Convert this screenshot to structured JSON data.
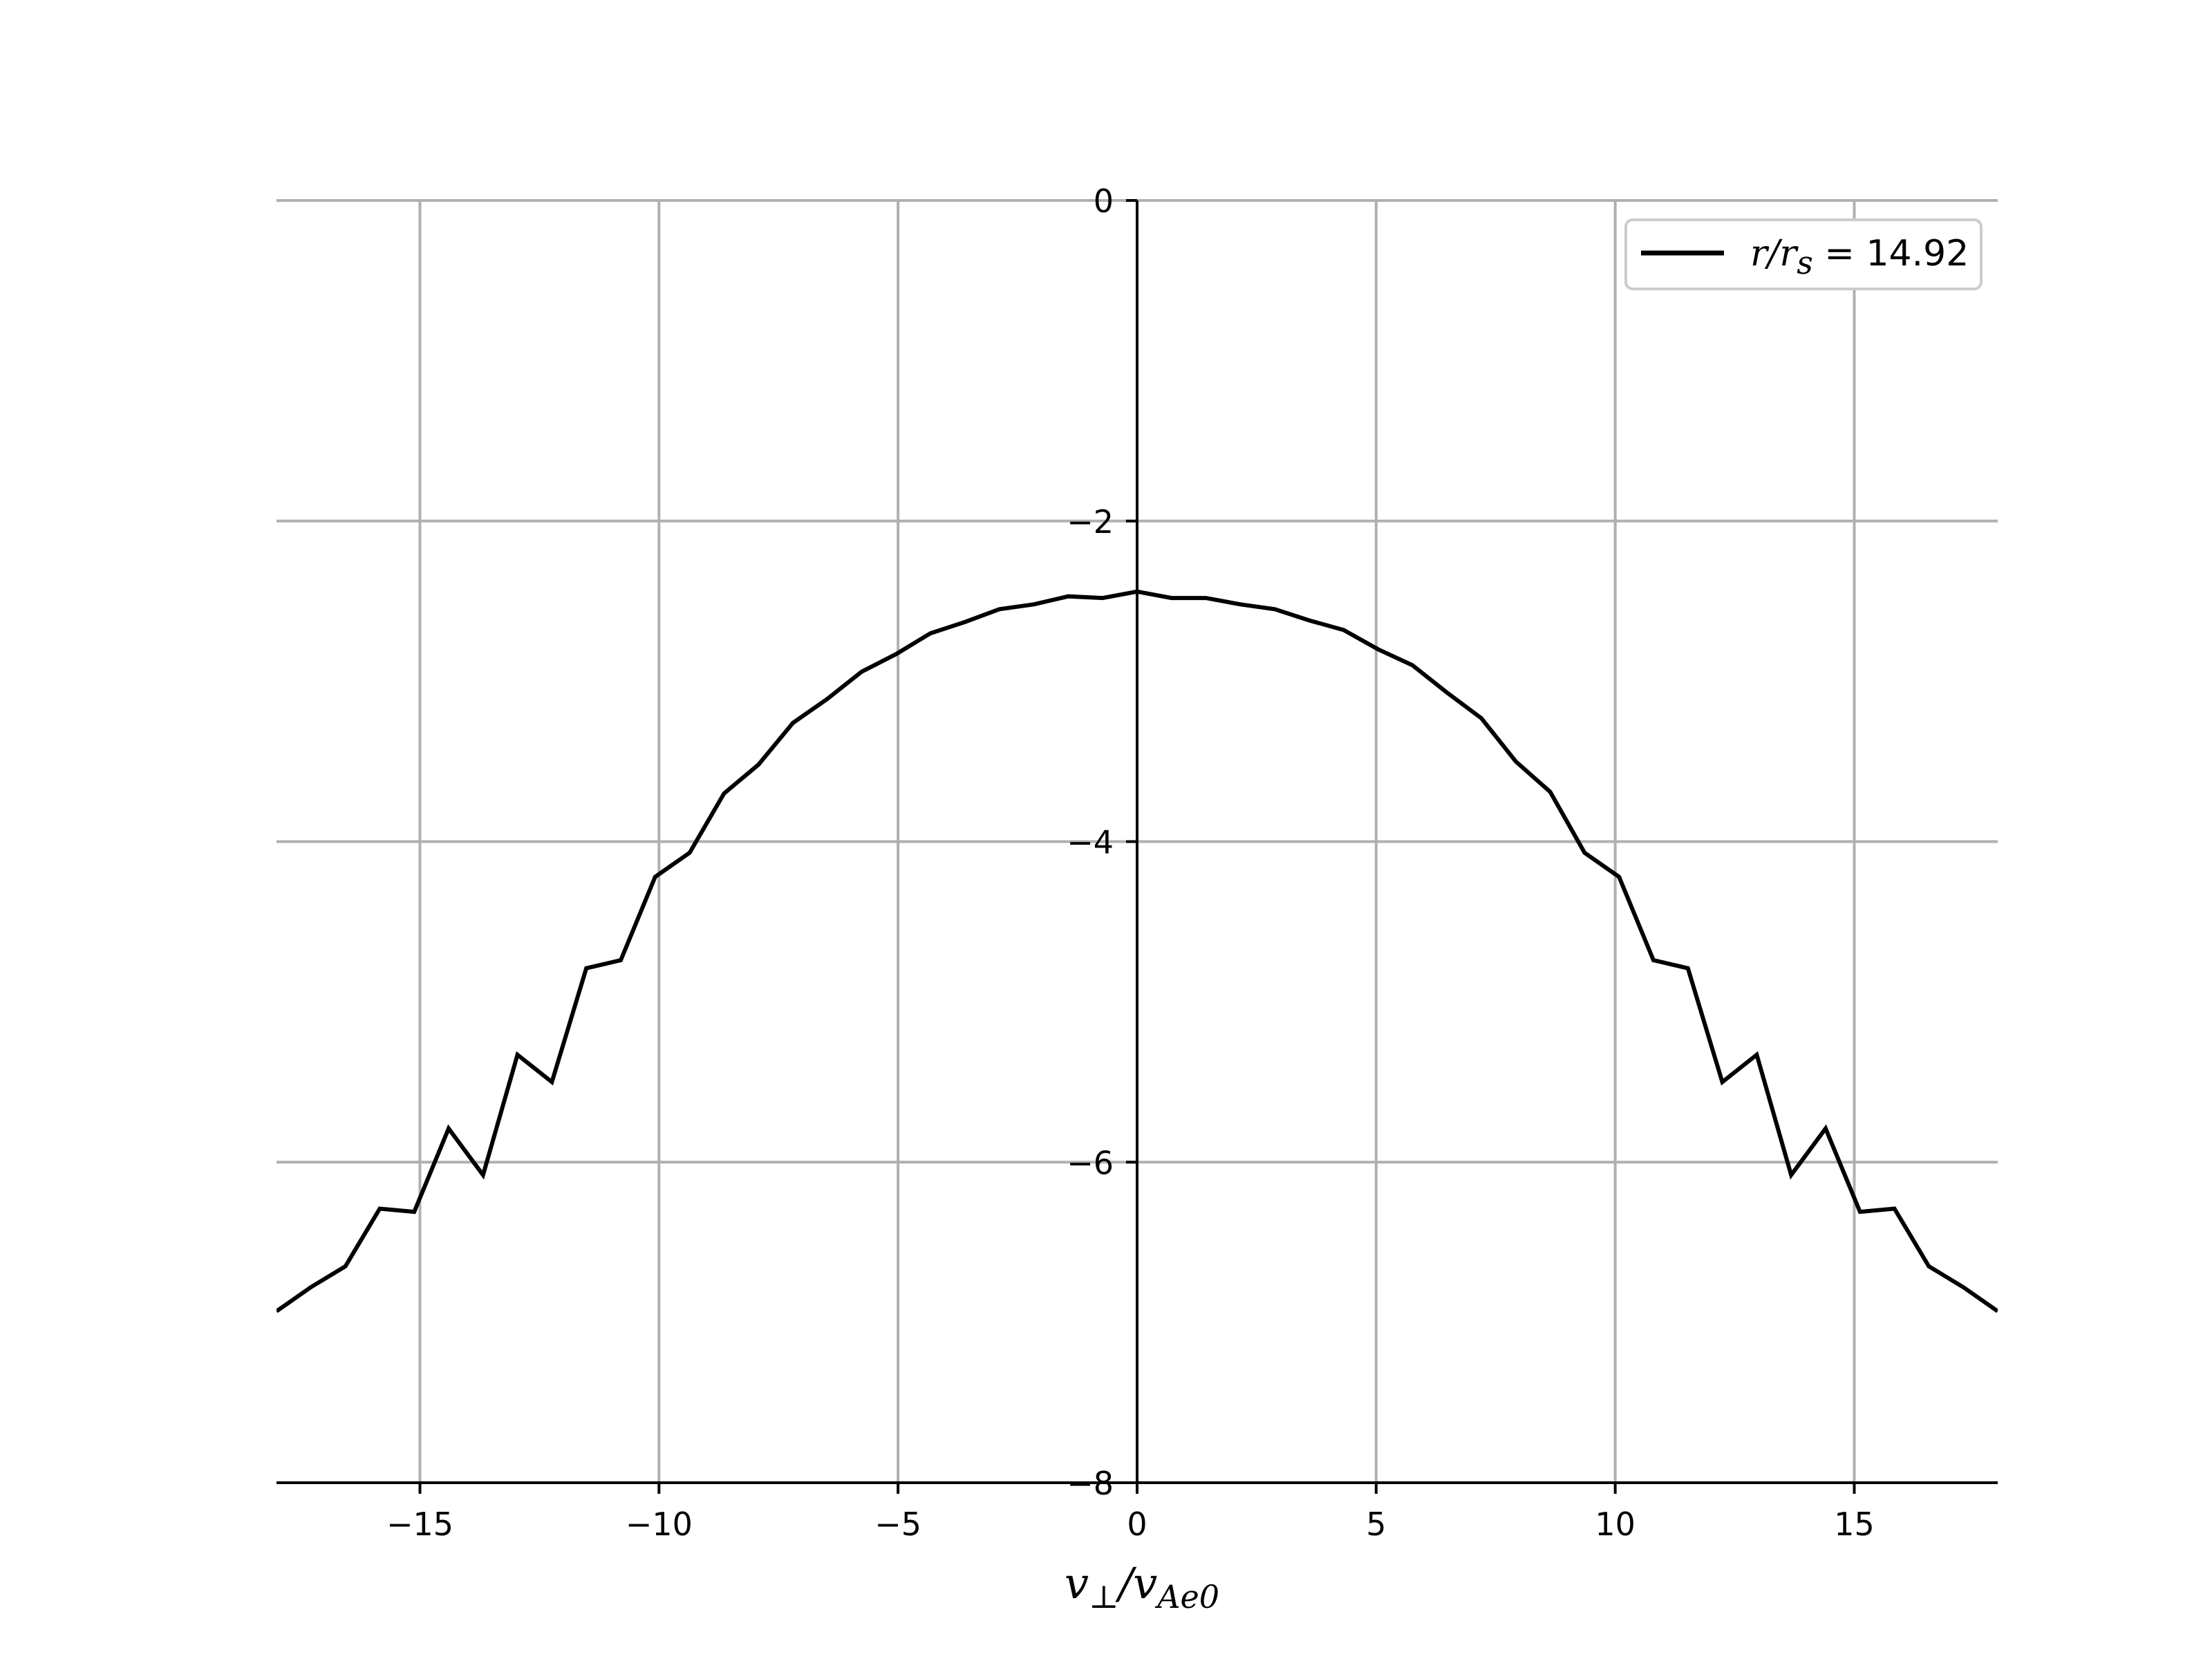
{
  "chart_data": {
    "type": "line",
    "xlabel": {
      "main": "v",
      "sub1": "⊥",
      "slash": "/",
      "main2": "v",
      "sub2": "Ae0"
    },
    "xlim": [
      -18,
      18
    ],
    "ylim": [
      -8,
      0
    ],
    "x_ticks": [
      -15,
      -10,
      -5,
      0,
      5,
      10,
      15
    ],
    "y_ticks": [
      0,
      -2,
      -4,
      -6,
      -8
    ],
    "x_tick_labels": [
      "−15",
      "−10",
      "−5",
      "0",
      "5",
      "10",
      "15"
    ],
    "y_tick_labels": [
      "0",
      "−2",
      "−4",
      "−6",
      "−8"
    ],
    "grid": true,
    "spines": "centered-zero-y-axis",
    "legend": {
      "placement": "top-right",
      "label_italic": "r/r",
      "label_sub": "s",
      "label_rest": " = 14.92"
    },
    "colors": {
      "line": "#000000",
      "grid": "#b0b0b0",
      "axis": "#000000"
    },
    "series": [
      {
        "name": "r/r_s = 14.92",
        "x": [
          -18.0,
          -17.28,
          -16.56,
          -15.84,
          -15.12,
          -14.4,
          -13.68,
          -12.96,
          -12.24,
          -11.52,
          -10.8,
          -10.08,
          -9.36,
          -8.64,
          -7.92,
          -7.2,
          -6.48,
          -5.76,
          -5.04,
          -4.32,
          -3.6,
          -2.88,
          -2.16,
          -1.44,
          -0.72,
          0.0,
          0.72,
          1.44,
          2.16,
          2.88,
          3.6,
          4.32,
          5.04,
          5.76,
          6.48,
          7.2,
          7.92,
          8.64,
          9.36,
          10.08,
          10.8,
          11.52,
          12.24,
          12.96,
          13.68,
          14.4,
          15.12,
          15.84,
          16.56,
          17.28,
          18.0
        ],
        "y": [
          -6.93,
          -6.78,
          -6.65,
          -6.29,
          -6.31,
          -5.79,
          -6.08,
          -5.33,
          -5.5,
          -4.79,
          -4.74,
          -4.22,
          -4.07,
          -3.7,
          -3.52,
          -3.26,
          -3.11,
          -2.94,
          -2.83,
          -2.7,
          -2.63,
          -2.55,
          -2.52,
          -2.47,
          -2.48,
          -2.44,
          -2.48,
          -2.48,
          -2.52,
          -2.55,
          -2.62,
          -2.68,
          -2.8,
          -2.9,
          -3.07,
          -3.23,
          -3.5,
          -3.69,
          -4.07,
          -4.22,
          -4.74,
          -4.79,
          -5.5,
          -5.33,
          -6.08,
          -5.79,
          -6.31,
          -6.29,
          -6.65,
          -6.78,
          -6.93
        ]
      }
    ]
  }
}
